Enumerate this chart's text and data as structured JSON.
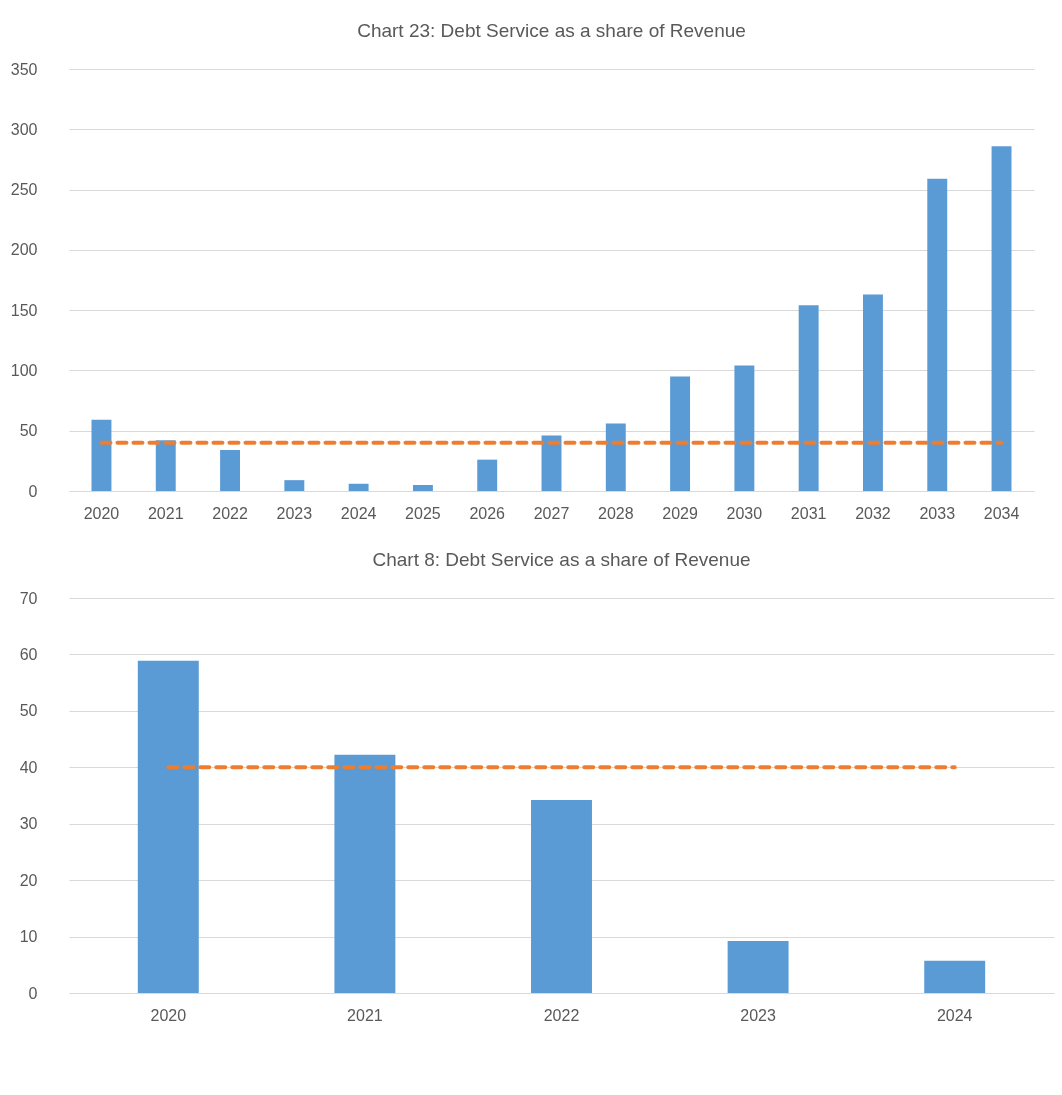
{
  "chart_data": [
    {
      "type": "bar",
      "title": "Chart 23: Debt Service as a share of Revenue",
      "categories": [
        "2020",
        "2021",
        "2022",
        "2023",
        "2024",
        "2025",
        "2026",
        "2027",
        "2028",
        "2029",
        "2030",
        "2031",
        "2032",
        "2033",
        "2034"
      ],
      "ylim": [
        0,
        350
      ],
      "yticks": [
        0,
        50,
        100,
        150,
        200,
        250,
        300,
        350
      ],
      "grid": "y",
      "series": [
        {
          "color": "#5b9bd5",
          "values": [
            59,
            42,
            34,
            9,
            6,
            5,
            26,
            46,
            56,
            95,
            104,
            154,
            163,
            259,
            286
          ]
        },
        {
          "type": "line",
          "color": "#ed7d31",
          "line_style": "dashed",
          "values": [
            40,
            40,
            40,
            40,
            40,
            40,
            40,
            40,
            40,
            40,
            40,
            40,
            40,
            40,
            40
          ]
        }
      ]
    },
    {
      "type": "bar",
      "title": "Chart 8: Debt Service as a share of Revenue",
      "categories": [
        "2020",
        "2021",
        "2022",
        "2023",
        "2024"
      ],
      "ylim": [
        0,
        70
      ],
      "yticks": [
        0,
        10,
        20,
        30,
        40,
        50,
        60,
        70
      ],
      "grid": "y",
      "series": [
        {
          "color": "#5b9bd5",
          "values": [
            58.9,
            42.2,
            34.2,
            9.2,
            5.7
          ]
        },
        {
          "type": "line",
          "color": "#ed7d31",
          "line_style": "dashed",
          "values": [
            40,
            40,
            40,
            40,
            40
          ]
        }
      ]
    }
  ]
}
